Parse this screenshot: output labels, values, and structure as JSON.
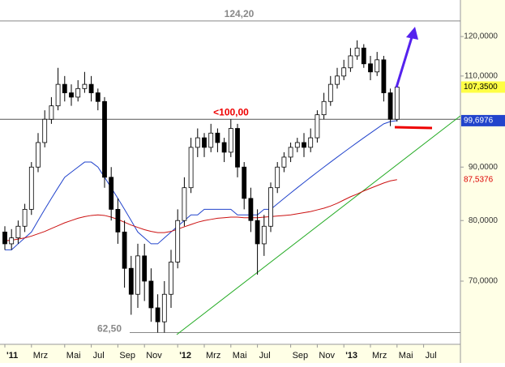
{
  "chart_data": {
    "type": "candlestick",
    "categories": [
      "'11",
      null,
      null,
      null,
      "Mrz",
      null,
      null,
      null,
      null,
      "Mai",
      null,
      null,
      null,
      "Jul",
      null,
      null,
      null,
      "Sep",
      null,
      null,
      null,
      "Nov",
      null,
      null,
      null,
      null,
      "'12",
      null,
      null,
      null,
      "Mrz",
      null,
      null,
      null,
      "Mai",
      null,
      null,
      null,
      "Jul",
      null,
      null,
      null,
      null,
      "Sep",
      null,
      null,
      null,
      "Nov",
      null,
      null,
      null,
      "'13",
      null,
      null,
      null,
      "Mrz",
      null,
      null,
      null,
      "Mai",
      null,
      null,
      null,
      "Jul"
    ],
    "open": [
      78,
      76,
      77,
      79,
      82,
      90,
      95,
      100,
      103,
      108,
      106,
      105,
      107,
      108,
      106,
      104,
      88,
      82,
      78,
      72,
      68,
      74,
      70,
      66,
      64,
      68,
      73,
      80,
      86,
      94,
      96,
      94,
      97,
      95,
      93,
      98,
      90,
      84,
      80,
      76,
      79,
      86,
      90,
      92,
      94,
      95,
      94,
      96,
      101,
      104,
      108,
      110,
      112,
      115,
      117,
      113,
      111,
      114,
      106,
      100,
      null,
      null,
      null,
      null
    ],
    "high": [
      79,
      78.5,
      80,
      83,
      91,
      97,
      102,
      105,
      112,
      110,
      108,
      109,
      111,
      110,
      107,
      105,
      90,
      84,
      80,
      74,
      76,
      76,
      72,
      68,
      70,
      75,
      82,
      88,
      96,
      98,
      97,
      99,
      98,
      96,
      100,
      99,
      91,
      86,
      82,
      81,
      87,
      91,
      93,
      95,
      96,
      97,
      98,
      102,
      106,
      110,
      112,
      114,
      117,
      119,
      118,
      115,
      116,
      115,
      107,
      108,
      null,
      null,
      null,
      null
    ],
    "low": [
      75,
      75,
      76,
      78,
      81,
      89,
      94,
      99,
      102,
      104,
      103,
      104,
      106,
      104,
      102,
      86,
      80,
      76,
      69,
      65,
      66,
      67,
      64,
      62.5,
      62.5,
      66,
      72,
      79,
      85,
      92,
      92,
      93,
      93,
      91,
      92,
      88,
      82,
      78,
      71,
      74,
      78,
      85,
      89,
      91,
      93,
      92,
      93,
      95,
      100,
      103,
      107,
      109,
      111,
      114,
      112,
      109,
      110,
      104,
      98.5,
      99.5,
      null,
      null,
      null,
      null
    ],
    "close": [
      76,
      77,
      79,
      82,
      90,
      95,
      100,
      103,
      108,
      106,
      105,
      107,
      108,
      106,
      104,
      88,
      82,
      78,
      72,
      68,
      74,
      70,
      66,
      64,
      68,
      73,
      80,
      86,
      94,
      96,
      94,
      97,
      95,
      93,
      98,
      90,
      84,
      80,
      76,
      79,
      86,
      90,
      92,
      94,
      95,
      94,
      96,
      101,
      104,
      108,
      110,
      112,
      115,
      117,
      113,
      111,
      114,
      106,
      100,
      107.35,
      null,
      null,
      null,
      null
    ],
    "close_last_label": "107,3500",
    "series": [
      {
        "color": "#2244cc",
        "last_label": "99,6976",
        "values": [
          75,
          75,
          76,
          77,
          78,
          80,
          82,
          84,
          86,
          88,
          89,
          90,
          91,
          91,
          90,
          88,
          86,
          84,
          82,
          80,
          78,
          77,
          76,
          76,
          77,
          78,
          79,
          80,
          81,
          81,
          82,
          82,
          82,
          82,
          82,
          81,
          81,
          81,
          81,
          82,
          82,
          83,
          84,
          85,
          86,
          87,
          88,
          89,
          90,
          91,
          92,
          93,
          94,
          95,
          96,
          97,
          98,
          99,
          99.5,
          99.6976,
          null,
          null,
          null,
          null
        ]
      },
      {
        "color": "#cc1111",
        "last_label": "87,5376",
        "values": [
          76.5,
          76.6,
          76.8,
          77,
          77.3,
          77.7,
          78.1,
          78.6,
          79.1,
          79.6,
          80,
          80.4,
          80.7,
          80.9,
          81,
          80.9,
          80.6,
          80.2,
          79.7,
          79.2,
          78.8,
          78.4,
          78.1,
          77.9,
          77.9,
          78.1,
          78.5,
          78.9,
          79.3,
          79.7,
          80,
          80.2,
          80.4,
          80.5,
          80.6,
          80.6,
          80.5,
          80.5,
          80.5,
          80.6,
          80.7,
          80.8,
          80.9,
          81,
          81.2,
          81.4,
          81.6,
          81.9,
          82.2,
          82.6,
          83.1,
          83.7,
          84.3,
          84.8,
          85.4,
          85.9,
          86.4,
          86.9,
          87.3,
          87.5376,
          null,
          null,
          null,
          null
        ]
      }
    ],
    "levels": [
      {
        "value": 124.2,
        "label": "124,20",
        "color": "#888888"
      },
      {
        "value": 100,
        "label": "<100,00",
        "color": "#ee0000"
      },
      {
        "value": 62.5,
        "label": "62,50",
        "color": "#888888"
      }
    ],
    "ylim": [
      60.9,
      129.6
    ],
    "log_scale": true,
    "yticks": [
      {
        "value": 120,
        "label": "120,0000"
      },
      {
        "value": 110,
        "label": "110,0000"
      },
      {
        "value": 90,
        "label": "90,0000"
      },
      {
        "value": 80,
        "label": "80,0000"
      },
      {
        "value": 70,
        "label": "70,0000"
      }
    ]
  }
}
